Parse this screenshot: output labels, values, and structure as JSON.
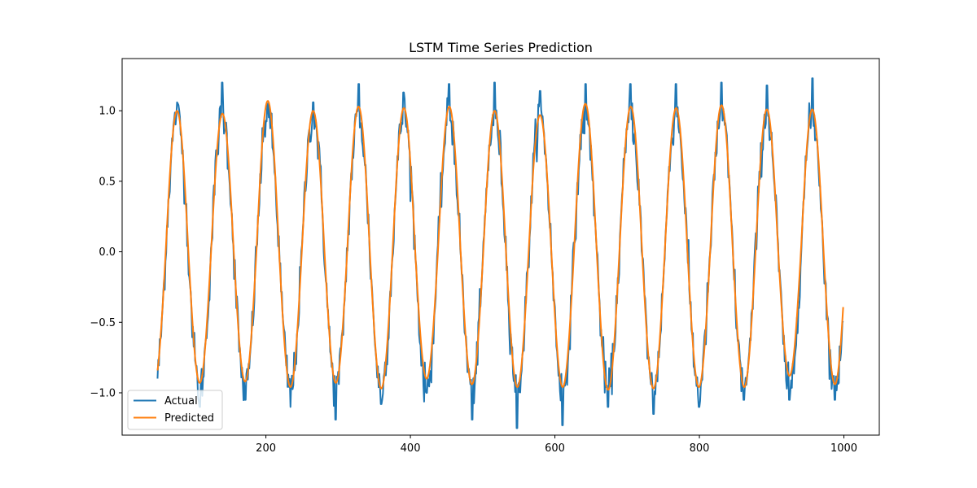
{
  "chart_data": {
    "type": "line",
    "title": "LSTM Time Series Prediction",
    "xlabel": "",
    "ylabel": "",
    "xlim": [
      1,
      1049
    ],
    "ylim": [
      -1.3,
      1.37
    ],
    "xticks": [
      200,
      400,
      600,
      800,
      1000
    ],
    "yticks": [
      -1.0,
      -0.5,
      0.0,
      0.5,
      1.0
    ],
    "xtick_labels": [
      "200",
      "400",
      "600",
      "800",
      "1000"
    ],
    "ytick_labels": [
      "−1.0",
      "−0.5",
      "0.0",
      "0.5",
      "1.0"
    ],
    "grid": false,
    "legend_position": "lower left",
    "signal": {
      "x_start": 50,
      "x_end": 999,
      "period": 62.8,
      "peak_x": 77,
      "amplitude": 0.97
    },
    "series": [
      {
        "name": "Actual",
        "color": "#1f77b4",
        "peak_values": [
          1.06,
          1.2,
          1.05,
          1.06,
          1.19,
          1.13,
          1.19,
          1.2,
          1.14,
          1.19,
          1.19,
          1.19,
          1.2,
          1.18,
          1.23
        ],
        "trough_values": [
          -1.1,
          -1.05,
          -1.1,
          -1.19,
          -1.08,
          -1.0,
          -1.19,
          -1.25,
          -1.23,
          -1.1,
          -1.15,
          -1.1,
          -1.05,
          -1.05,
          -1.05
        ]
      },
      {
        "name": "Predicted",
        "color": "#ff7f0e",
        "peak_values": [
          1.0,
          0.98,
          1.07,
          1.0,
          1.03,
          1.02,
          1.03,
          1.0,
          0.97,
          1.05,
          1.03,
          1.02,
          1.04,
          1.01,
          1.01
        ],
        "trough_values": [
          -0.93,
          -0.92,
          -0.96,
          -0.93,
          -0.97,
          -0.9,
          -0.94,
          -0.96,
          -0.96,
          -0.98,
          -0.97,
          -0.96,
          -0.96,
          -0.88,
          -0.94
        ]
      }
    ]
  }
}
